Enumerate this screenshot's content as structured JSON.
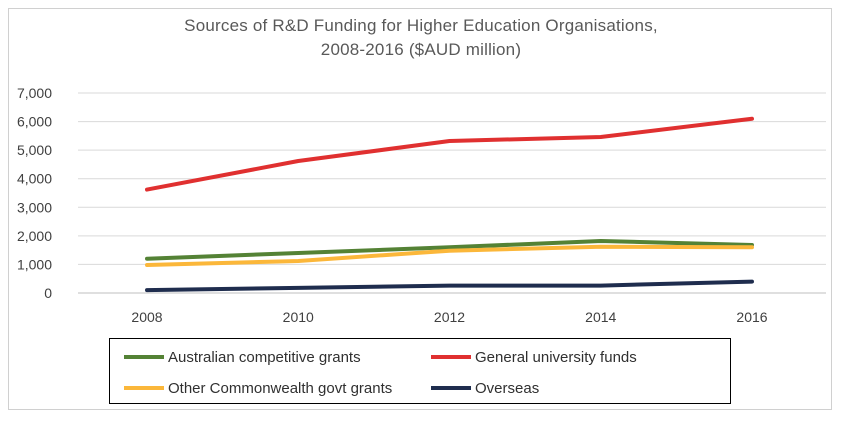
{
  "chart_data": {
    "type": "line",
    "title_lines": [
      "Sources of R&D Funding for Higher Education Organisations,",
      "2008-2016 ($AUD million)"
    ],
    "x": [
      "2008",
      "2010",
      "2012",
      "2014",
      "2016"
    ],
    "y_ticks": [
      "0",
      "1,000",
      "2,000",
      "3,000",
      "4,000",
      "5,000",
      "6,000",
      "7,000"
    ],
    "ylim": [
      0,
      7000
    ],
    "grid": true,
    "legend_position": "bottom",
    "series": [
      {
        "name": "Australian competitive grants",
        "color": "#548235",
        "values": [
          1200,
          1400,
          1600,
          1820,
          1680
        ]
      },
      {
        "name": "General university funds",
        "color": "#e03030",
        "values": [
          3620,
          4620,
          5320,
          5460,
          6100
        ]
      },
      {
        "name": "Other Commonwealth govt grants",
        "color": "#fbb73a",
        "values": [
          980,
          1120,
          1480,
          1620,
          1600
        ]
      },
      {
        "name": "Overseas",
        "color": "#1f2d4e",
        "values": [
          100,
          180,
          260,
          260,
          400
        ]
      }
    ]
  }
}
